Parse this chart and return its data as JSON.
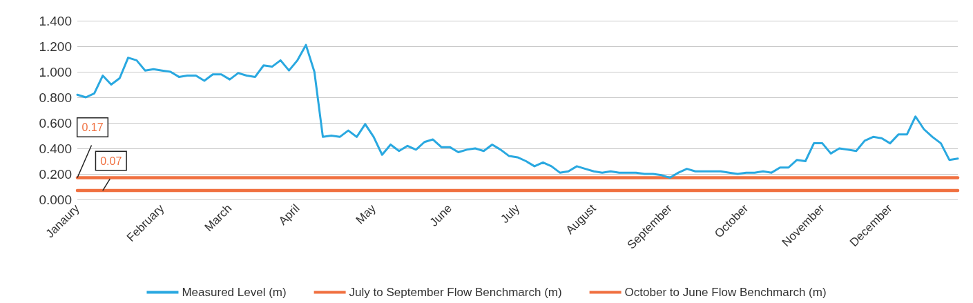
{
  "chart_data": {
    "type": "line",
    "categories": [
      "Janaury",
      null,
      null,
      null,
      null,
      null,
      null,
      null,
      null,
      null,
      "February",
      null,
      null,
      null,
      null,
      null,
      null,
      null,
      "March",
      null,
      null,
      null,
      null,
      null,
      null,
      null,
      "April",
      null,
      null,
      null,
      null,
      null,
      null,
      null,
      null,
      "May",
      null,
      null,
      null,
      null,
      null,
      null,
      null,
      null,
      "June",
      null,
      null,
      null,
      null,
      null,
      null,
      null,
      "July",
      null,
      null,
      null,
      null,
      null,
      null,
      null,
      null,
      "August",
      null,
      null,
      null,
      null,
      null,
      null,
      null,
      null,
      "September",
      null,
      null,
      null,
      null,
      null,
      null,
      null,
      null,
      "October",
      null,
      null,
      null,
      null,
      null,
      null,
      null,
      null,
      "November",
      null,
      null,
      null,
      null,
      null,
      null,
      null,
      "December",
      null,
      null,
      null,
      null,
      null,
      null,
      null,
      null
    ],
    "series": [
      {
        "name": "Measured Level (m)",
        "color": "#29a8e0",
        "values": [
          0.82,
          0.8,
          0.83,
          0.97,
          0.9,
          0.95,
          1.11,
          1.09,
          1.01,
          1.02,
          1.01,
          1.0,
          0.96,
          0.97,
          0.97,
          0.93,
          0.98,
          0.98,
          0.94,
          0.99,
          0.97,
          0.96,
          1.05,
          1.04,
          1.09,
          1.01,
          1.09,
          1.21,
          1.0,
          0.49,
          0.5,
          0.49,
          0.54,
          0.49,
          0.59,
          0.49,
          0.35,
          0.43,
          0.38,
          0.42,
          0.39,
          0.45,
          0.47,
          0.41,
          0.41,
          0.37,
          0.39,
          0.4,
          0.38,
          0.43,
          0.39,
          0.34,
          0.33,
          0.3,
          0.26,
          0.29,
          0.26,
          0.21,
          0.22,
          0.26,
          0.24,
          0.22,
          0.21,
          0.22,
          0.21,
          0.21,
          0.21,
          0.2,
          0.2,
          0.19,
          0.17,
          0.21,
          0.24,
          0.22,
          0.22,
          0.22,
          0.22,
          0.21,
          0.2,
          0.21,
          0.21,
          0.22,
          0.21,
          0.25,
          0.25,
          0.31,
          0.3,
          0.44,
          0.44,
          0.36,
          0.4,
          0.39,
          0.38,
          0.46,
          0.49,
          0.48,
          0.44,
          0.51,
          0.51,
          0.65,
          0.55,
          0.49,
          0.44,
          0.31,
          0.32
        ]
      },
      {
        "name": "July to September Flow Benchmarch (m)",
        "color": "#f07040",
        "value_labels": [
          "0.17",
          null,
          null,
          null,
          null,
          null,
          null,
          null,
          null,
          null,
          null,
          null,
          null,
          null,
          null,
          null,
          null,
          null,
          null,
          null,
          null,
          null,
          null,
          null,
          null,
          null,
          null,
          null,
          null,
          null,
          null,
          null,
          null,
          null,
          null,
          null,
          null,
          null,
          null,
          null,
          null,
          null,
          null,
          null,
          null,
          null,
          null,
          null,
          null,
          null,
          null,
          null,
          null,
          null,
          null,
          null,
          null,
          null,
          null,
          null,
          null,
          null,
          null,
          null,
          null,
          null,
          null,
          null,
          null,
          null,
          null,
          null,
          null,
          null,
          null,
          null,
          null,
          null,
          null,
          null,
          null,
          null,
          null,
          null,
          null,
          null,
          null,
          null,
          null,
          null,
          null,
          null,
          null,
          null,
          null,
          null,
          null,
          null,
          null,
          null,
          null,
          null,
          null,
          null,
          null
        ],
        "values": [
          0.17,
          0.17,
          0.17,
          0.17,
          0.17,
          0.17,
          0.17,
          0.17,
          0.17,
          0.17,
          0.17,
          0.17,
          0.17,
          0.17,
          0.17,
          0.17,
          0.17,
          0.17,
          0.17,
          0.17,
          0.17,
          0.17,
          0.17,
          0.17,
          0.17,
          0.17,
          0.17,
          0.17,
          0.17,
          0.17,
          0.17,
          0.17,
          0.17,
          0.17,
          0.17,
          0.17,
          0.17,
          0.17,
          0.17,
          0.17,
          0.17,
          0.17,
          0.17,
          0.17,
          0.17,
          0.17,
          0.17,
          0.17,
          0.17,
          0.17,
          0.17,
          0.17,
          0.17,
          0.17,
          0.17,
          0.17,
          0.17,
          0.17,
          0.17,
          0.17,
          0.17,
          0.17,
          0.17,
          0.17,
          0.17,
          0.17,
          0.17,
          0.17,
          0.17,
          0.17,
          0.17,
          0.17,
          0.17,
          0.17,
          0.17,
          0.17,
          0.17,
          0.17,
          0.17,
          0.17,
          0.17,
          0.17,
          0.17,
          0.17,
          0.17,
          0.17,
          0.17,
          0.17,
          0.17,
          0.17,
          0.17,
          0.17,
          0.17,
          0.17,
          0.17,
          0.17,
          0.17,
          0.17,
          0.17,
          0.17,
          0.17,
          0.17,
          0.17,
          0.17,
          0.17
        ]
      },
      {
        "name": "October to June Flow Benchmarch (m)",
        "color": "#f07040",
        "value_labels": [
          null,
          null,
          null,
          "0.07",
          null,
          null,
          null,
          null,
          null,
          null,
          null,
          null,
          null,
          null,
          null,
          null,
          null,
          null,
          null,
          null,
          null,
          null,
          null,
          null,
          null,
          null,
          null,
          null,
          null,
          null,
          null,
          null,
          null,
          null,
          null,
          null,
          null,
          null,
          null,
          null,
          null,
          null,
          null,
          null,
          null,
          null,
          null,
          null,
          null,
          null,
          null,
          null,
          null,
          null,
          null,
          null,
          null,
          null,
          null,
          null,
          null,
          null,
          null,
          null,
          null,
          null,
          null,
          null,
          null,
          null,
          null,
          null,
          null,
          null,
          null,
          null,
          null,
          null,
          null,
          null,
          null,
          null,
          null,
          null,
          null,
          null,
          null,
          null,
          null,
          null,
          null,
          null,
          null,
          null,
          null,
          null,
          null,
          null,
          null,
          null,
          null,
          null,
          null,
          null,
          null
        ],
        "values": [
          0.07,
          0.07,
          0.07,
          0.07,
          0.07,
          0.07,
          0.07,
          0.07,
          0.07,
          0.07,
          0.07,
          0.07,
          0.07,
          0.07,
          0.07,
          0.07,
          0.07,
          0.07,
          0.07,
          0.07,
          0.07,
          0.07,
          0.07,
          0.07,
          0.07,
          0.07,
          0.07,
          0.07,
          0.07,
          0.07,
          0.07,
          0.07,
          0.07,
          0.07,
          0.07,
          0.07,
          0.07,
          0.07,
          0.07,
          0.07,
          0.07,
          0.07,
          0.07,
          0.07,
          0.07,
          0.07,
          0.07,
          0.07,
          0.07,
          0.07,
          0.07,
          0.07,
          0.07,
          0.07,
          0.07,
          0.07,
          0.07,
          0.07,
          0.07,
          0.07,
          0.07,
          0.07,
          0.07,
          0.07,
          0.07,
          0.07,
          0.07,
          0.07,
          0.07,
          0.07,
          0.07,
          0.07,
          0.07,
          0.07,
          0.07,
          0.07,
          0.07,
          0.07,
          0.07,
          0.07,
          0.07,
          0.07,
          0.07,
          0.07,
          0.07,
          0.07,
          0.07,
          0.07,
          0.07,
          0.07,
          0.07,
          0.07,
          0.07,
          0.07,
          0.07,
          0.07,
          0.07,
          0.07,
          0.07,
          0.07,
          0.07,
          0.07,
          0.07,
          0.07,
          0.07
        ]
      }
    ],
    "ylim": [
      0,
      1.4
    ],
    "yticks": [
      {
        "value": 0,
        "label": "0.000"
      },
      {
        "value": 0.2,
        "label": "0.200"
      },
      {
        "value": 0.4,
        "label": "0.400"
      },
      {
        "value": 0.6,
        "label": "0.600"
      },
      {
        "value": 0.8,
        "label": "0.800"
      },
      {
        "value": 1,
        "label": "1.000"
      },
      {
        "value": 1.2,
        "label": "1.200"
      },
      {
        "value": 1.4,
        "label": "1.400"
      }
    ],
    "grid": "y",
    "legend": "bottom",
    "marker": "none",
    "line_style": "solid"
  }
}
